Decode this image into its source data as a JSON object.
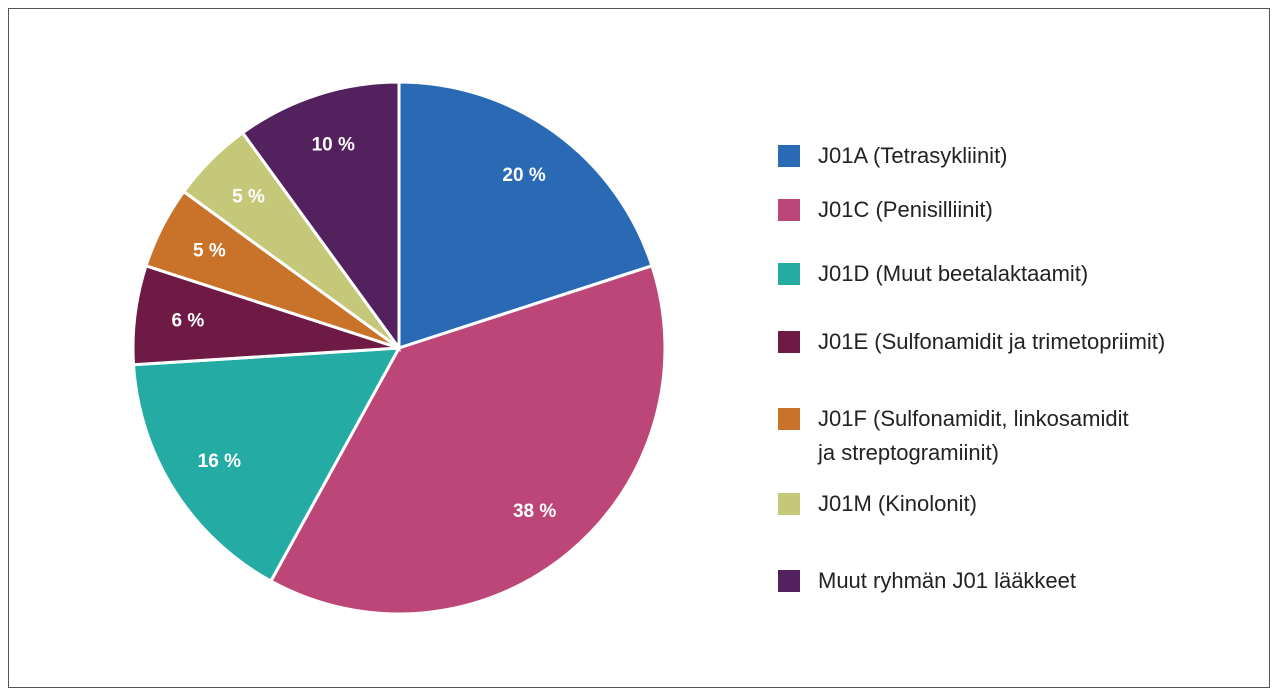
{
  "chart_data": {
    "type": "pie",
    "categories": [
      "J01A (Tetrasykliinit)",
      "J01C (Penisilliinit)",
      "J01D (Muut beetalaktaamit)",
      "J01E (Sulfonamidit ja trimetopriimit)",
      "J01F (Sulfonamidit, linkosamidit\nja streptogramiinit)",
      "J01M (Kinolonit)",
      "Muut ryhmän J01 lääkkeet"
    ],
    "values": [
      20,
      38,
      16,
      6,
      5,
      5,
      10
    ],
    "value_labels": [
      "20 %",
      "38 %",
      "16 %",
      "6 %",
      "5 %",
      "5 %",
      "10 %"
    ],
    "colors": [
      "#2a6ab5",
      "#bc4677",
      "#24aba4",
      "#6e1a45",
      "#c8722a",
      "#c5c878",
      "#52215e"
    ],
    "legend": "right"
  }
}
